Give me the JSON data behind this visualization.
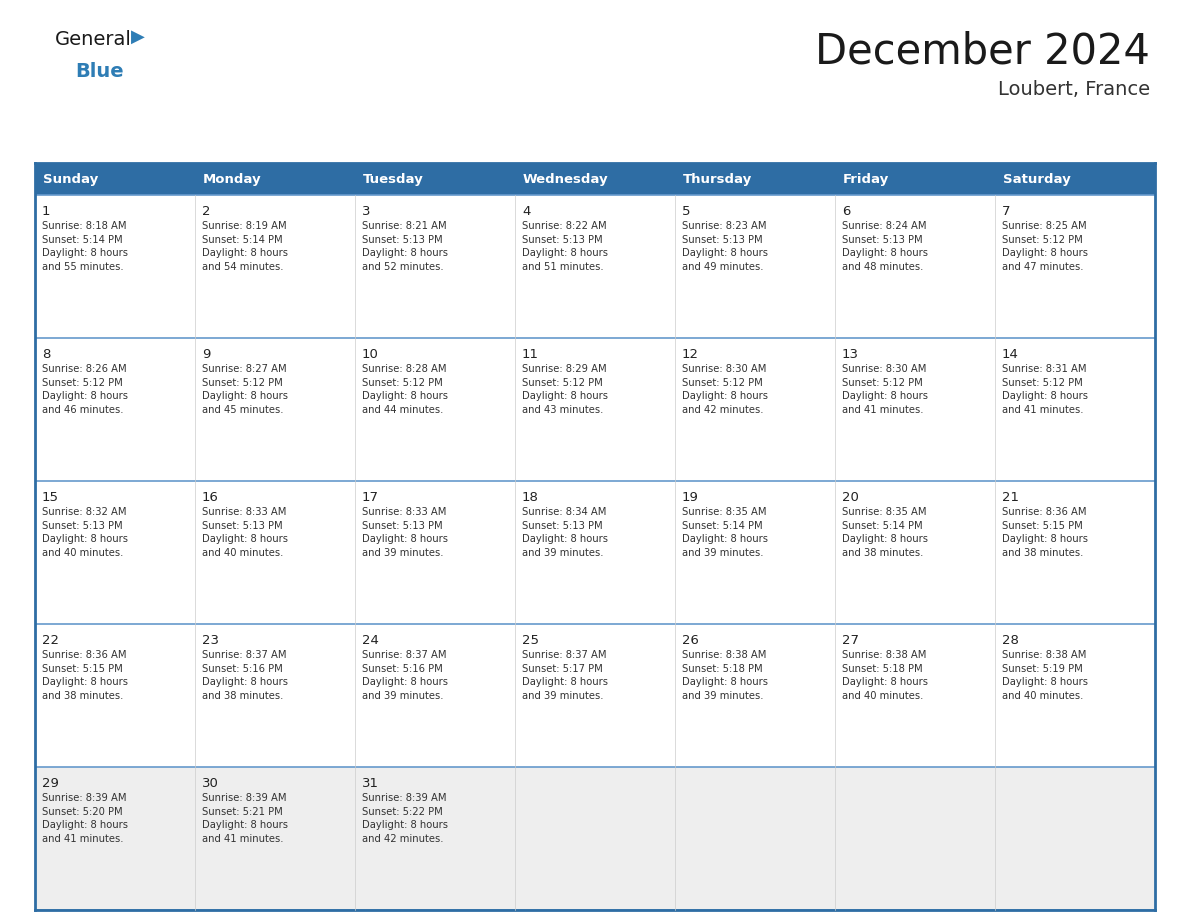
{
  "title": "December 2024",
  "subtitle": "Loubert, France",
  "header_color": "#2E6DA4",
  "header_text_color": "#FFFFFF",
  "day_names": [
    "Sunday",
    "Monday",
    "Tuesday",
    "Wednesday",
    "Thursday",
    "Friday",
    "Saturday"
  ],
  "weeks": [
    [
      {
        "day": 1,
        "sunrise": "8:18 AM",
        "sunset": "5:14 PM",
        "daylight": "8 hours\nand 55 minutes."
      },
      {
        "day": 2,
        "sunrise": "8:19 AM",
        "sunset": "5:14 PM",
        "daylight": "8 hours\nand 54 minutes."
      },
      {
        "day": 3,
        "sunrise": "8:21 AM",
        "sunset": "5:13 PM",
        "daylight": "8 hours\nand 52 minutes."
      },
      {
        "day": 4,
        "sunrise": "8:22 AM",
        "sunset": "5:13 PM",
        "daylight": "8 hours\nand 51 minutes."
      },
      {
        "day": 5,
        "sunrise": "8:23 AM",
        "sunset": "5:13 PM",
        "daylight": "8 hours\nand 49 minutes."
      },
      {
        "day": 6,
        "sunrise": "8:24 AM",
        "sunset": "5:13 PM",
        "daylight": "8 hours\nand 48 minutes."
      },
      {
        "day": 7,
        "sunrise": "8:25 AM",
        "sunset": "5:12 PM",
        "daylight": "8 hours\nand 47 minutes."
      }
    ],
    [
      {
        "day": 8,
        "sunrise": "8:26 AM",
        "sunset": "5:12 PM",
        "daylight": "8 hours\nand 46 minutes."
      },
      {
        "day": 9,
        "sunrise": "8:27 AM",
        "sunset": "5:12 PM",
        "daylight": "8 hours\nand 45 minutes."
      },
      {
        "day": 10,
        "sunrise": "8:28 AM",
        "sunset": "5:12 PM",
        "daylight": "8 hours\nand 44 minutes."
      },
      {
        "day": 11,
        "sunrise": "8:29 AM",
        "sunset": "5:12 PM",
        "daylight": "8 hours\nand 43 minutes."
      },
      {
        "day": 12,
        "sunrise": "8:30 AM",
        "sunset": "5:12 PM",
        "daylight": "8 hours\nand 42 minutes."
      },
      {
        "day": 13,
        "sunrise": "8:30 AM",
        "sunset": "5:12 PM",
        "daylight": "8 hours\nand 41 minutes."
      },
      {
        "day": 14,
        "sunrise": "8:31 AM",
        "sunset": "5:12 PM",
        "daylight": "8 hours\nand 41 minutes."
      }
    ],
    [
      {
        "day": 15,
        "sunrise": "8:32 AM",
        "sunset": "5:13 PM",
        "daylight": "8 hours\nand 40 minutes."
      },
      {
        "day": 16,
        "sunrise": "8:33 AM",
        "sunset": "5:13 PM",
        "daylight": "8 hours\nand 40 minutes."
      },
      {
        "day": 17,
        "sunrise": "8:33 AM",
        "sunset": "5:13 PM",
        "daylight": "8 hours\nand 39 minutes."
      },
      {
        "day": 18,
        "sunrise": "8:34 AM",
        "sunset": "5:13 PM",
        "daylight": "8 hours\nand 39 minutes."
      },
      {
        "day": 19,
        "sunrise": "8:35 AM",
        "sunset": "5:14 PM",
        "daylight": "8 hours\nand 39 minutes."
      },
      {
        "day": 20,
        "sunrise": "8:35 AM",
        "sunset": "5:14 PM",
        "daylight": "8 hours\nand 38 minutes."
      },
      {
        "day": 21,
        "sunrise": "8:36 AM",
        "sunset": "5:15 PM",
        "daylight": "8 hours\nand 38 minutes."
      }
    ],
    [
      {
        "day": 22,
        "sunrise": "8:36 AM",
        "sunset": "5:15 PM",
        "daylight": "8 hours\nand 38 minutes."
      },
      {
        "day": 23,
        "sunrise": "8:37 AM",
        "sunset": "5:16 PM",
        "daylight": "8 hours\nand 38 minutes."
      },
      {
        "day": 24,
        "sunrise": "8:37 AM",
        "sunset": "5:16 PM",
        "daylight": "8 hours\nand 39 minutes."
      },
      {
        "day": 25,
        "sunrise": "8:37 AM",
        "sunset": "5:17 PM",
        "daylight": "8 hours\nand 39 minutes."
      },
      {
        "day": 26,
        "sunrise": "8:38 AM",
        "sunset": "5:18 PM",
        "daylight": "8 hours\nand 39 minutes."
      },
      {
        "day": 27,
        "sunrise": "8:38 AM",
        "sunset": "5:18 PM",
        "daylight": "8 hours\nand 40 minutes."
      },
      {
        "day": 28,
        "sunrise": "8:38 AM",
        "sunset": "5:19 PM",
        "daylight": "8 hours\nand 40 minutes."
      }
    ],
    [
      {
        "day": 29,
        "sunrise": "8:39 AM",
        "sunset": "5:20 PM",
        "daylight": "8 hours\nand 41 minutes."
      },
      {
        "day": 30,
        "sunrise": "8:39 AM",
        "sunset": "5:21 PM",
        "daylight": "8 hours\nand 41 minutes."
      },
      {
        "day": 31,
        "sunrise": "8:39 AM",
        "sunset": "5:22 PM",
        "daylight": "8 hours\nand 42 minutes."
      },
      null,
      null,
      null,
      null
    ]
  ],
  "cell_bg_color": "#FFFFFF",
  "last_row_bg_color": "#EEEEEE",
  "grid_color": "#2E6DA4",
  "separator_color": "#6699CC",
  "text_color": "#333333",
  "day_num_color": "#222222",
  "logo_general_color": "#1a1a1a",
  "logo_blue_color": "#2E7DB5",
  "title_color": "#1a1a1a",
  "subtitle_color": "#333333"
}
